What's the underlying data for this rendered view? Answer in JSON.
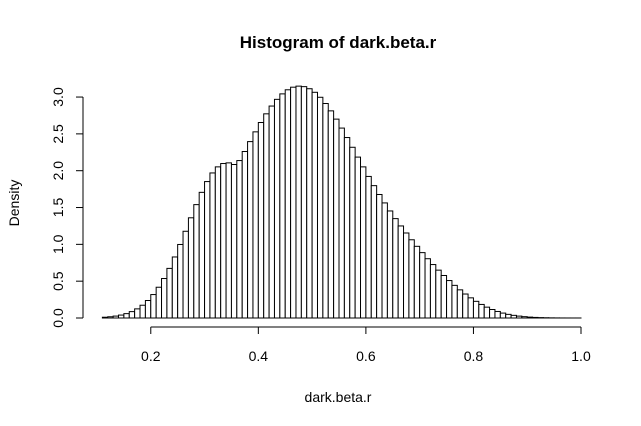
{
  "chart_data": {
    "type": "histogram",
    "title": "Histogram of dark.beta.r",
    "xlabel": "dark.beta.r",
    "ylabel": "Density",
    "xlim": [
      0.1,
      1.0
    ],
    "ylim": [
      0.0,
      3.15
    ],
    "bin_width": 0.01,
    "bin_start": 0.11,
    "x_ticks": [
      {
        "value": 0.2,
        "label": "0.2"
      },
      {
        "value": 0.4,
        "label": "0.4"
      },
      {
        "value": 0.6,
        "label": "0.6"
      },
      {
        "value": 0.8,
        "label": "0.8"
      },
      {
        "value": 1.0,
        "label": "1.0"
      }
    ],
    "y_ticks": [
      {
        "value": 0.0,
        "label": "0.0"
      },
      {
        "value": 0.5,
        "label": "0.5"
      },
      {
        "value": 1.0,
        "label": "1.0"
      },
      {
        "value": 1.5,
        "label": "1.5"
      },
      {
        "value": 2.0,
        "label": "2.0"
      },
      {
        "value": 2.5,
        "label": "2.5"
      },
      {
        "value": 3.0,
        "label": "3.0"
      }
    ],
    "values": [
      0.0105,
      0.0167,
      0.026,
      0.0396,
      0.0592,
      0.0866,
      0.1239,
      0.1734,
      0.2375,
      0.3183,
      0.4176,
      0.536,
      0.6736,
      0.8287,
      0.9983,
      1.1776,
      1.3605,
      1.5394,
      1.7062,
      1.8522,
      1.9694,
      2.052,
      2.0973,
      2.1063,
      2.084,
      2.1375,
      2.2605,
      2.3949,
      2.5275,
      2.6543,
      2.7721,
      2.8778,
      2.9688,
      3.043,
      3.0985,
      3.1339,
      3.1483,
      3.1412,
      3.113,
      3.0645,
      2.9969,
      2.9122,
      2.8125,
      2.7003,
      2.5786,
      2.4502,
      2.318,
      2.1846,
      2.052,
      1.9222,
      1.797,
      1.6769,
      1.5625,
      1.4534,
      1.3493,
      1.2498,
      1.1542,
      1.0622,
      0.9733,
      0.8875,
      0.8049,
      0.7256,
      0.6497,
      0.5772,
      0.5083,
      0.4432,
      0.3822,
      0.3256,
      0.2736,
      0.2264,
      0.1842,
      0.1472,
      0.1154,
      0.0886,
      0.0667,
      0.0494,
      0.036,
      0.0257,
      0.0179,
      0.0121,
      0.008,
      0.0051,
      0.0032,
      0.0019,
      0.0011,
      0.0006,
      0.0003,
      0.0002,
      0.0001
    ]
  }
}
